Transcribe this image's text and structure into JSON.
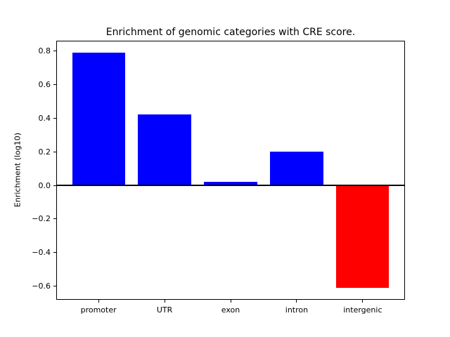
{
  "chart_data": {
    "type": "bar",
    "title": "Enrichment of genomic categories with CRE score.",
    "xlabel": "",
    "ylabel": "Enrichment (log10)",
    "categories": [
      "promoter",
      "UTR",
      "exon",
      "intron",
      "intergenic"
    ],
    "values": [
      0.79,
      0.42,
      0.02,
      0.2,
      -0.61
    ],
    "bar_colors": [
      "#0000ff",
      "#0000ff",
      "#0000ff",
      "#0000ff",
      "#ff0000"
    ],
    "positive_color": "#0000ff",
    "negative_color": "#ff0000",
    "ylim": [
      -0.68,
      0.86
    ],
    "yticks": [
      0.8,
      0.6,
      0.4,
      0.2,
      0.0,
      -0.2,
      -0.4,
      -0.6
    ],
    "ytick_labels": [
      "0.8",
      "0.6",
      "0.4",
      "0.2",
      "0.0",
      "−0.2",
      "−0.4",
      "−0.6"
    ],
    "zero_line": true,
    "grid": false,
    "legend": null,
    "bar_width_ratio": 0.8,
    "axis_color": "#000000",
    "background_color": "#ffffff"
  }
}
